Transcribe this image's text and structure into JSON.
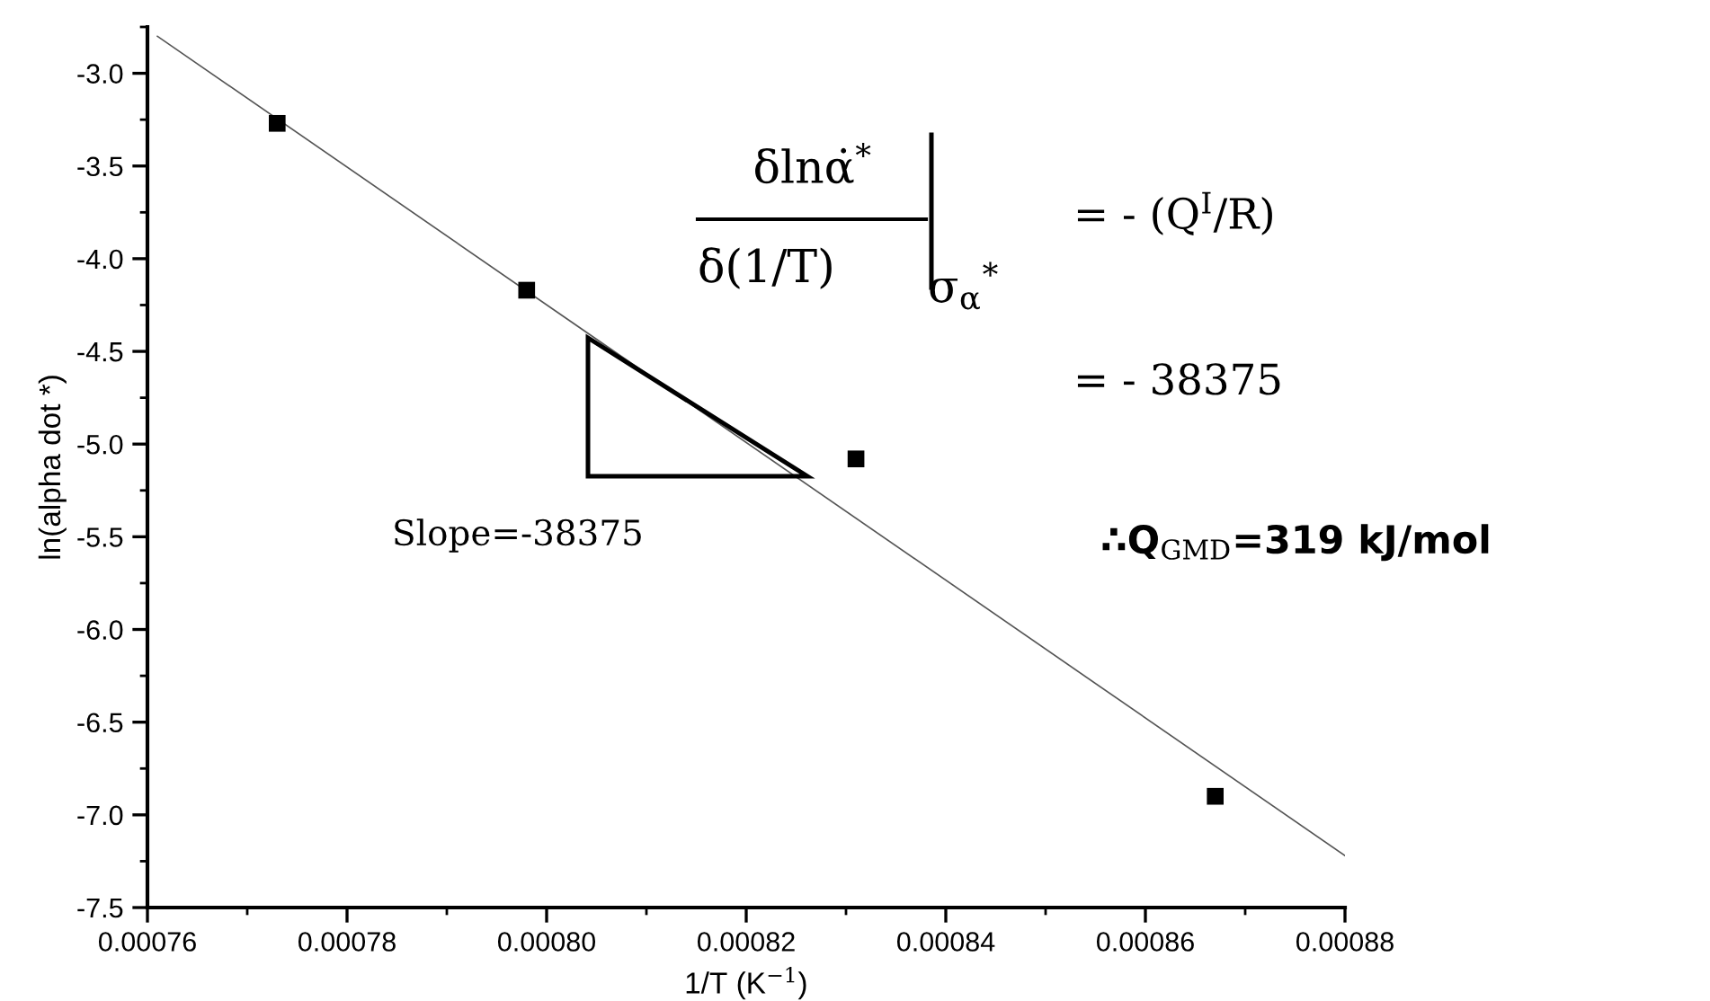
{
  "chart_data": {
    "type": "scatter",
    "xlabel": "1/T (K$^{−1}$)",
    "ylabel": "ln(alpha dot *)",
    "series": [
      {
        "type": "scatter",
        "color": "#000000",
        "marker": "square",
        "x": [
          0.000773,
          0.000798,
          0.000831,
          0.000867
        ],
        "values": [
          -3.27,
          -4.17,
          -5.08,
          -6.9
        ]
      },
      {
        "type": "line",
        "color": "#555555",
        "marker": "none",
        "line_style": "solid",
        "x": [
          0.000761,
          0.00088
        ],
        "values": [
          -2.8,
          -7.22
        ]
      }
    ],
    "xlim": [
      0.00076,
      0.00088
    ],
    "xticks": [
      {
        "value": 0.00076,
        "label": "0.00076"
      },
      {
        "value": 0.00078,
        "label": "0.00078"
      },
      {
        "value": 0.0008,
        "label": "0.00080"
      },
      {
        "value": 0.00082,
        "label": "0.00082"
      },
      {
        "value": 0.00084,
        "label": "0.00084"
      },
      {
        "value": 0.00086,
        "label": "0.00086"
      },
      {
        "value": 0.00088,
        "label": "0.00088"
      }
    ],
    "ylim": [
      -7.5,
      -2.75
    ],
    "yticks": [
      -7.5,
      {
        "value": -7,
        "label": "-7.0"
      },
      -6.5,
      {
        "value": -6,
        "label": "-6.0"
      },
      -5.5,
      {
        "value": -5,
        "label": "-5.0"
      },
      -4.5,
      {
        "value": -4,
        "label": "-4.0"
      },
      -3.5,
      {
        "value": -3,
        "label": "-3.0"
      }
    ],
    "grid": false,
    "legend": false,
    "annotations": [
      "δlnα̇$^{*}$",
      "δ(1/T)",
      "σ$_{α}$$^{*}$",
      "= - (Q$^{I}$/R)",
      "= - 38375",
      "Slope=-38375",
      "∴Q$_{GMD}$=319 kJ/mol"
    ]
  }
}
